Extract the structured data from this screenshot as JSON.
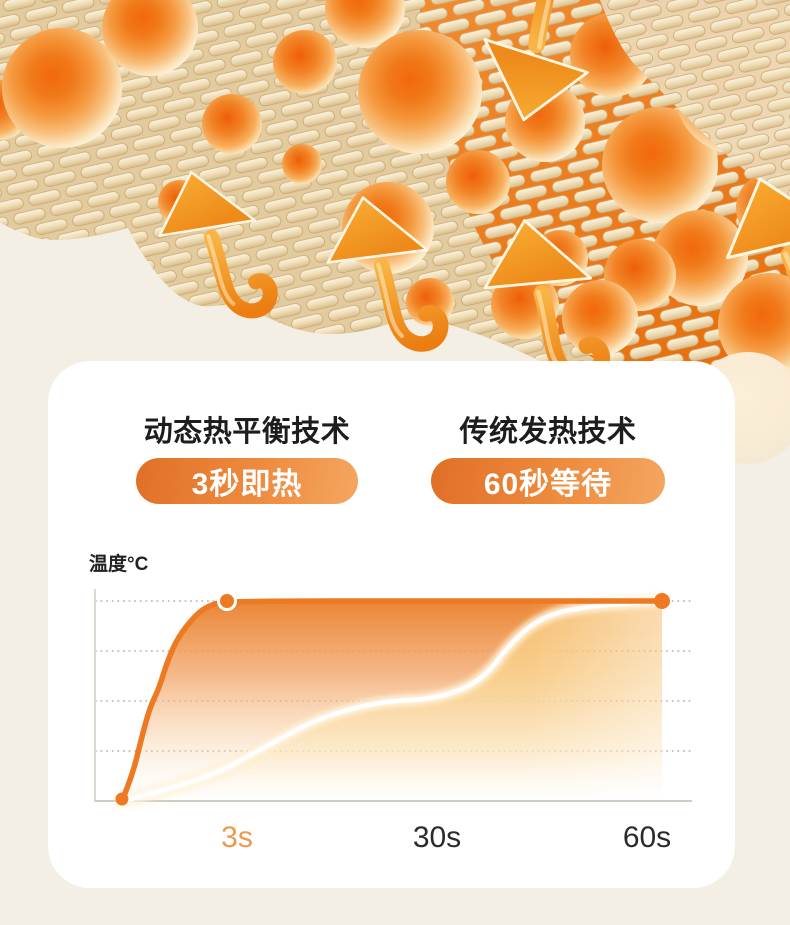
{
  "page": {
    "background_color": "#F3EFE5",
    "card_color": "#FFFFFF"
  },
  "hero": {
    "sphere_core_color": "#F3680C",
    "sphere_rim_color": "#FEF6E3",
    "arrow_color": "#F09A28",
    "fabric_color": "#EBDABA",
    "backdrop_glow_color": "#EE7D1F"
  },
  "comparison": {
    "left": {
      "title": "动态热平衡技术",
      "badge": "3秒即热"
    },
    "right": {
      "title": "传统发热技术",
      "badge": "60秒等待"
    },
    "badge_gradient": [
      "#E06F28",
      "#F5A660"
    ],
    "badge_text_color": "#FFFFFF"
  },
  "chart_data": {
    "type": "line",
    "title": "",
    "ylabel": "温度°C",
    "xlabel": "",
    "x_ticks": [
      "3s",
      "30s",
      "60s"
    ],
    "x_tick_values": [
      3,
      30,
      60
    ],
    "x_range": [
      0,
      60
    ],
    "ylim": [
      0,
      100
    ],
    "grid": "dotted-horizontal",
    "legend": "none",
    "accent_tick": "3s",
    "accent_tick_color": "#EB9B4D",
    "tick_color": "#2B2B2B",
    "series": [
      {
        "name": "动态热平衡技术",
        "label": "3秒即热",
        "color": "#ED7A22",
        "points": [
          [
            0,
            0
          ],
          [
            0.3,
            13
          ],
          [
            0.55,
            31
          ],
          [
            0.8,
            47
          ],
          [
            1.05,
            56
          ],
          [
            1.3,
            70
          ],
          [
            1.6,
            82
          ],
          [
            2.1,
            93
          ],
          [
            2.5,
            98
          ],
          [
            3,
            100
          ],
          [
            30,
            100
          ],
          [
            60,
            100
          ]
        ]
      },
      {
        "name": "传统发热技术",
        "label": "60秒等待",
        "color": "#FFFFFF",
        "points": [
          [
            0,
            0
          ],
          [
            2.3,
            10
          ],
          [
            7,
            25
          ],
          [
            15,
            42
          ],
          [
            23,
            50
          ],
          [
            30,
            51
          ],
          [
            36,
            60
          ],
          [
            40,
            80
          ],
          [
            44,
            92
          ],
          [
            49,
            97
          ],
          [
            60,
            100
          ]
        ]
      }
    ],
    "markers": [
      {
        "t": 0,
        "v": 0,
        "white_ring": false
      },
      {
        "t": 3,
        "v": 100,
        "white_ring": true
      },
      {
        "t": 60,
        "v": 100,
        "white_ring": false
      }
    ]
  }
}
